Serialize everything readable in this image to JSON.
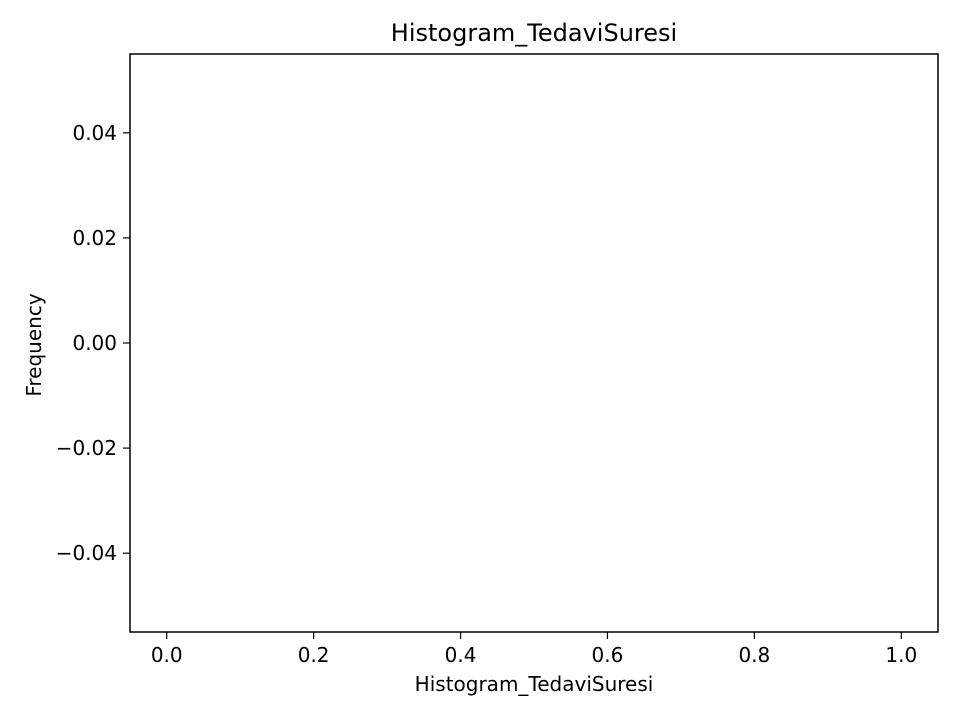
{
  "chart_data": {
    "type": "bar",
    "title": "Histogram_TedaviSuresi",
    "xlabel": "Histogram_TedaviSuresi",
    "ylabel": "Frequency",
    "xlim": [
      -0.05,
      1.05
    ],
    "ylim": [
      -0.055,
      0.055
    ],
    "x_ticks": [
      0.0,
      0.2,
      0.4,
      0.6,
      0.8,
      1.0
    ],
    "x_tick_labels": [
      "0.0",
      "0.2",
      "0.4",
      "0.6",
      "0.8",
      "1.0"
    ],
    "y_ticks": [
      -0.04,
      -0.02,
      0.0,
      0.02,
      0.04
    ],
    "y_tick_labels": [
      "−0.04",
      "−0.02",
      "0.00",
      "0.02",
      "0.04"
    ],
    "series": [],
    "values": [],
    "grid": false,
    "legend": "none"
  }
}
